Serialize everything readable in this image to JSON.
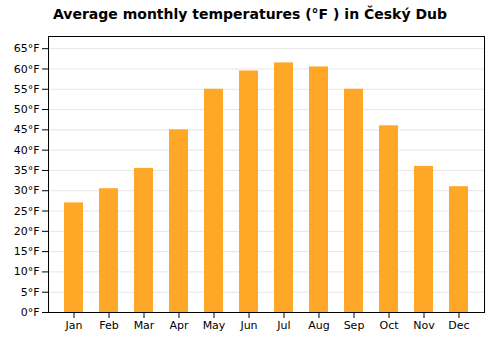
{
  "chart_data": {
    "type": "bar",
    "title": "Average monthly temperatures (°F ) in Český Dub",
    "categories": [
      "Jan",
      "Feb",
      "Mar",
      "Apr",
      "May",
      "Jun",
      "Jul",
      "Aug",
      "Sep",
      "Oct",
      "Nov",
      "Dec"
    ],
    "values": [
      27.0,
      30.5,
      35.5,
      45.0,
      55.0,
      59.5,
      61.5,
      60.5,
      55.0,
      46.0,
      36.0,
      31.0
    ],
    "color": "#FFA726",
    "ylim": [
      0,
      68
    ],
    "yticks": [
      {
        "value": 0,
        "label": "0°F"
      },
      {
        "value": 5,
        "label": "5°F"
      },
      {
        "value": 10,
        "label": "10°F"
      },
      {
        "value": 15,
        "label": "15°F"
      },
      {
        "value": 20,
        "label": "20°F"
      },
      {
        "value": 25,
        "label": "25°F"
      },
      {
        "value": 30,
        "label": "30°F"
      },
      {
        "value": 35,
        "label": "35°F"
      },
      {
        "value": 40,
        "label": "40°F"
      },
      {
        "value": 45,
        "label": "45°F"
      },
      {
        "value": 50,
        "label": "50°F"
      },
      {
        "value": 55,
        "label": "55°F"
      },
      {
        "value": 60,
        "label": "60°F"
      },
      {
        "value": 65,
        "label": "65°F"
      }
    ],
    "grid": true
  }
}
